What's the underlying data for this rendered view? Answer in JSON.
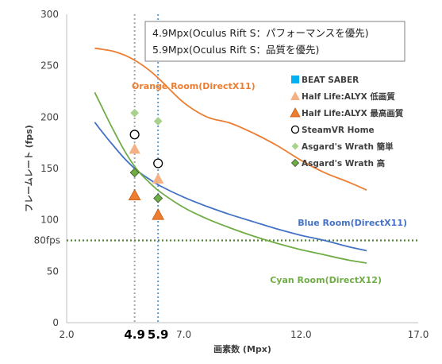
{
  "chart_data": {
    "type": "line",
    "xlabel": "画素数 (Mpx)",
    "ylabel": "フレームレート (fps)",
    "xlim": [
      2.0,
      17.0
    ],
    "ylim": [
      0,
      300
    ],
    "x_ticks": [
      "2.0",
      "7.0",
      "12.0",
      "17.0"
    ],
    "y_ticks": [
      "0",
      "50",
      "100",
      "150",
      "200",
      "250",
      "300"
    ],
    "vertical_markers": [
      {
        "x": 4.9,
        "label": "4.9",
        "color": "#a6a6a6"
      },
      {
        "x": 5.9,
        "label": "5.9",
        "color": "#5b9bd5"
      }
    ],
    "reference_line": {
      "y": 80,
      "label": "80fps",
      "color": "#548235"
    },
    "info_box": [
      "4.9Mpx(Oculus Rift S：パフォーマンスを優先)",
      "5.9Mpx(Oculus Rift S：品質を優先)"
    ],
    "series": [
      {
        "name": "Orange Room(DirectX11)",
        "color": "#ed7d31",
        "x": [
          3.2,
          3.5,
          4.0,
          4.5,
          5.0,
          5.5,
          6.0,
          7.0,
          8.0,
          9.0,
          10.0,
          11.0,
          12.0,
          13.0,
          14.0,
          14.8
        ],
        "y": [
          267,
          266,
          264,
          260,
          254,
          246,
          236,
          214,
          200,
          194,
          184,
          172,
          158,
          146,
          137,
          129
        ]
      },
      {
        "name": "Blue Room(DirectX11)",
        "color": "#4472c4",
        "x": [
          3.2,
          3.5,
          4.0,
          4.5,
          5.0,
          5.5,
          6.0,
          7.0,
          8.0,
          9.0,
          10.0,
          11.0,
          12.0,
          13.0,
          14.0,
          14.8
        ],
        "y": [
          195,
          186,
          172,
          159,
          148,
          140,
          133,
          122,
          113,
          105,
          98,
          91,
          85,
          80,
          74,
          70
        ]
      },
      {
        "name": "Cyan Room(DirectX12)",
        "color": "#70ad47",
        "x": [
          3.2,
          3.5,
          4.0,
          4.5,
          5.0,
          5.5,
          6.0,
          7.0,
          8.0,
          9.0,
          10.0,
          11.0,
          12.0,
          13.0,
          14.0,
          14.8
        ],
        "y": [
          224,
          210,
          187,
          166,
          149,
          137,
          127,
          112,
          101,
          92,
          84,
          77,
          71,
          66,
          61,
          58
        ]
      }
    ],
    "points": [
      {
        "name": "BEAT SABER",
        "marker": "square",
        "color": "#00b0f0",
        "x": [],
        "y": []
      },
      {
        "name": "Half Life:ALYX 低画質",
        "marker": "triangle-filled",
        "color": "#f4b183",
        "x": [
          4.9,
          5.9
        ],
        "y": [
          169,
          140
        ]
      },
      {
        "name": "Half Life:ALYX 最高画質",
        "marker": "triangle",
        "color": "#ed7d31",
        "x": [
          4.9,
          5.9
        ],
        "y": [
          124,
          105
        ]
      },
      {
        "name": "SteamVR Home",
        "marker": "circle-open",
        "color": "#000000",
        "x": [
          4.9,
          5.9
        ],
        "y": [
          183,
          155
        ]
      },
      {
        "name": "Asgard's Wrath 簡単",
        "marker": "diamond-filled",
        "color": "#a9d18e",
        "x": [
          4.9,
          5.9
        ],
        "y": [
          204,
          196
        ]
      },
      {
        "name": "Asgard's Wrath 高",
        "marker": "diamond",
        "color": "#70ad47",
        "x": [
          4.9,
          5.9
        ],
        "y": [
          146,
          121
        ]
      }
    ],
    "legend_position": "top-right",
    "grid": false
  }
}
